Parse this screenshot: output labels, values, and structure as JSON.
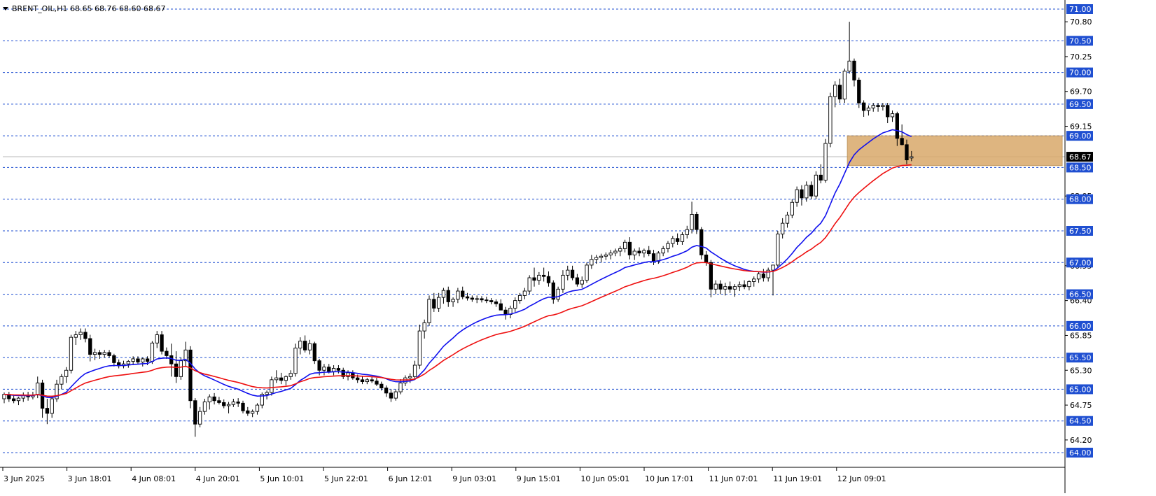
{
  "header": {
    "symbol": "BRENT_OIL,H1",
    "ohlc": "68.65 68.76 68.60 68.67"
  },
  "colors": {
    "grid_level": "#1f4fd1",
    "label_bg": "#1f4fd1",
    "ma_fast": "#1010ee",
    "ma_slow": "#ee1010",
    "zone": "#d9a96b",
    "current_price_line": "#b8b8b8",
    "candle_up": "#ffffff",
    "candle_down": "#000000"
  },
  "chart_data": {
    "type": "candlestick",
    "title": "BRENT_OIL,H1",
    "ylim": [
      64.0,
      71.0
    ],
    "x_tick_labels": [
      "3 Jun 2025",
      "3 Jun 18:01",
      "4 Jun 08:01",
      "4 Jun 20:01",
      "5 Jun 10:01",
      "5 Jun 22:01",
      "6 Jun 12:01",
      "9 Jun 03:01",
      "9 Jun 15:01",
      "10 Jun 05:01",
      "10 Jun 17:01",
      "11 Jun 07:01",
      "11 Jun 19:01",
      "12 Jun 09:01"
    ],
    "price_ticks": [
      "70.80",
      "70.25",
      "69.70",
      "69.15",
      "68.05",
      "66.95",
      "66.40",
      "65.85",
      "65.30",
      "64.75",
      "64.20"
    ],
    "level_lines": [
      "71.00",
      "70.50",
      "70.00",
      "69.50",
      "69.00",
      "68.50",
      "68.00",
      "67.50",
      "67.00",
      "66.50",
      "66.00",
      "65.50",
      "65.00",
      "64.50",
      "64.00"
    ],
    "current_price": "68.67",
    "zone": {
      "from": 68.53,
      "to": 69.0,
      "start_bar": 177,
      "end_bar": 222
    },
    "candles": [
      [
        64.85,
        64.95,
        64.78,
        64.92
      ],
      [
        64.92,
        64.96,
        64.8,
        64.85
      ],
      [
        64.85,
        64.9,
        64.78,
        64.82
      ],
      [
        64.82,
        64.88,
        64.75,
        64.86
      ],
      [
        64.86,
        64.95,
        64.8,
        64.9
      ],
      [
        64.9,
        64.96,
        64.82,
        64.88
      ],
      [
        64.88,
        64.96,
        64.84,
        64.91
      ],
      [
        64.91,
        65.2,
        64.86,
        65.1
      ],
      [
        65.1,
        65.15,
        64.55,
        64.7
      ],
      [
        64.7,
        64.85,
        64.45,
        64.62
      ],
      [
        64.62,
        64.9,
        64.55,
        64.85
      ],
      [
        64.85,
        65.15,
        64.8,
        65.08
      ],
      [
        65.08,
        65.24,
        65.0,
        65.2
      ],
      [
        65.2,
        65.35,
        65.1,
        65.3
      ],
      [
        65.3,
        65.86,
        65.25,
        65.82
      ],
      [
        65.82,
        65.92,
        65.7,
        65.86
      ],
      [
        65.86,
        65.96,
        65.78,
        65.9
      ],
      [
        65.9,
        65.96,
        65.74,
        65.8
      ],
      [
        65.8,
        65.86,
        65.44,
        65.55
      ],
      [
        65.55,
        65.64,
        65.46,
        65.58
      ],
      [
        65.58,
        65.62,
        65.48,
        65.55
      ],
      [
        65.55,
        65.62,
        65.5,
        65.58
      ],
      [
        65.58,
        65.62,
        65.5,
        65.53
      ],
      [
        65.53,
        65.56,
        65.36,
        65.42
      ],
      [
        65.42,
        65.47,
        65.33,
        65.37
      ],
      [
        65.37,
        65.45,
        65.33,
        65.4
      ],
      [
        65.4,
        65.46,
        65.34,
        65.44
      ],
      [
        65.44,
        65.52,
        65.38,
        65.48
      ],
      [
        65.48,
        65.52,
        65.4,
        65.43
      ],
      [
        65.43,
        65.5,
        65.36,
        65.48
      ],
      [
        65.48,
        65.52,
        65.38,
        65.44
      ],
      [
        65.44,
        65.76,
        65.4,
        65.73
      ],
      [
        65.73,
        65.92,
        65.65,
        65.86
      ],
      [
        65.86,
        65.92,
        65.55,
        65.6
      ],
      [
        65.6,
        65.66,
        65.48,
        65.53
      ],
      [
        65.53,
        65.72,
        65.2,
        65.4
      ],
      [
        65.4,
        65.6,
        65.1,
        65.2
      ],
      [
        65.2,
        65.5,
        65.15,
        65.45
      ],
      [
        65.45,
        65.75,
        65.35,
        65.62
      ],
      [
        65.62,
        65.68,
        64.7,
        64.82
      ],
      [
        64.82,
        64.86,
        64.25,
        64.45
      ],
      [
        64.45,
        64.72,
        64.4,
        64.65
      ],
      [
        64.65,
        64.85,
        64.6,
        64.8
      ],
      [
        64.8,
        64.92,
        64.68,
        64.88
      ],
      [
        64.88,
        64.94,
        64.76,
        64.82
      ],
      [
        64.82,
        64.88,
        64.76,
        64.79
      ],
      [
        64.79,
        64.84,
        64.7,
        64.74
      ],
      [
        64.74,
        64.8,
        64.62,
        64.76
      ],
      [
        64.76,
        64.85,
        64.72,
        64.8
      ],
      [
        64.8,
        64.86,
        64.72,
        64.78
      ],
      [
        64.78,
        64.82,
        64.62,
        64.66
      ],
      [
        64.66,
        64.72,
        64.58,
        64.62
      ],
      [
        64.62,
        64.68,
        64.56,
        64.65
      ],
      [
        64.65,
        64.78,
        64.6,
        64.75
      ],
      [
        64.75,
        64.95,
        64.7,
        64.92
      ],
      [
        64.92,
        64.98,
        64.84,
        64.95
      ],
      [
        64.95,
        65.2,
        64.9,
        65.15
      ],
      [
        65.15,
        65.3,
        65.1,
        65.18
      ],
      [
        65.18,
        65.26,
        65.08,
        65.14
      ],
      [
        65.14,
        65.22,
        65.06,
        65.2
      ],
      [
        65.2,
        65.3,
        65.15,
        65.25
      ],
      [
        65.25,
        65.72,
        65.2,
        65.65
      ],
      [
        65.65,
        65.82,
        65.55,
        65.76
      ],
      [
        65.76,
        65.85,
        65.58,
        65.62
      ],
      [
        65.62,
        65.78,
        65.55,
        65.72
      ],
      [
        65.72,
        65.75,
        65.4,
        65.45
      ],
      [
        65.45,
        65.48,
        65.22,
        65.3
      ],
      [
        65.3,
        65.4,
        65.22,
        65.35
      ],
      [
        65.35,
        65.4,
        65.25,
        65.28
      ],
      [
        65.28,
        65.38,
        65.22,
        65.33
      ],
      [
        65.33,
        65.38,
        65.25,
        65.3
      ],
      [
        65.3,
        65.34,
        65.16,
        65.2
      ],
      [
        65.2,
        65.3,
        65.14,
        65.26
      ],
      [
        65.26,
        65.3,
        65.15,
        65.18
      ],
      [
        65.18,
        65.23,
        65.1,
        65.15
      ],
      [
        65.15,
        65.2,
        65.08,
        65.12
      ],
      [
        65.12,
        65.18,
        65.08,
        65.15
      ],
      [
        65.15,
        65.2,
        65.1,
        65.13
      ],
      [
        65.13,
        65.18,
        65.05,
        65.08
      ],
      [
        65.08,
        65.12,
        64.98,
        65.02
      ],
      [
        65.02,
        65.06,
        64.88,
        64.94
      ],
      [
        64.94,
        65.0,
        64.8,
        64.86
      ],
      [
        64.86,
        65.0,
        64.82,
        64.96
      ],
      [
        64.96,
        65.16,
        64.92,
        65.1
      ],
      [
        65.1,
        65.22,
        65.05,
        65.18
      ],
      [
        65.18,
        65.25,
        65.1,
        65.2
      ],
      [
        65.2,
        65.45,
        65.15,
        65.38
      ],
      [
        65.38,
        66.02,
        65.32,
        65.92
      ],
      [
        65.92,
        66.1,
        65.8,
        66.05
      ],
      [
        66.05,
        66.48,
        66.0,
        66.42
      ],
      [
        66.42,
        66.52,
        66.22,
        66.28
      ],
      [
        66.28,
        66.52,
        66.22,
        66.45
      ],
      [
        66.45,
        66.6,
        66.35,
        66.56
      ],
      [
        66.56,
        66.62,
        66.3,
        66.38
      ],
      [
        66.38,
        66.45,
        66.3,
        66.42
      ],
      [
        66.42,
        66.6,
        66.36,
        66.55
      ],
      [
        66.55,
        66.62,
        66.42,
        66.46
      ],
      [
        66.46,
        66.52,
        66.4,
        66.44
      ],
      [
        66.44,
        66.48,
        66.38,
        66.42
      ],
      [
        66.42,
        66.48,
        66.36,
        66.43
      ],
      [
        66.43,
        66.47,
        66.37,
        66.41
      ],
      [
        66.41,
        66.46,
        66.36,
        66.4
      ],
      [
        66.4,
        66.44,
        66.34,
        66.38
      ],
      [
        66.38,
        66.42,
        66.3,
        66.35
      ],
      [
        66.35,
        66.42,
        66.28,
        66.25
      ],
      [
        66.25,
        66.3,
        66.1,
        66.18
      ],
      [
        66.18,
        66.32,
        66.12,
        66.28
      ],
      [
        66.28,
        66.45,
        66.22,
        66.4
      ],
      [
        66.4,
        66.52,
        66.35,
        66.48
      ],
      [
        66.48,
        66.6,
        66.42,
        66.55
      ],
      [
        66.55,
        66.8,
        66.5,
        66.76
      ],
      [
        66.76,
        66.92,
        66.62,
        66.72
      ],
      [
        66.72,
        66.85,
        66.65,
        66.8
      ],
      [
        66.8,
        66.92,
        66.7,
        66.78
      ],
      [
        66.78,
        66.86,
        66.62,
        66.68
      ],
      [
        66.68,
        66.72,
        66.35,
        66.42
      ],
      [
        66.42,
        66.62,
        66.38,
        66.58
      ],
      [
        66.58,
        66.88,
        66.52,
        66.8
      ],
      [
        66.8,
        66.95,
        66.72,
        66.88
      ],
      [
        66.88,
        66.95,
        66.72,
        66.76
      ],
      [
        66.76,
        66.82,
        66.62,
        66.66
      ],
      [
        66.66,
        66.78,
        66.6,
        66.72
      ],
      [
        66.72,
        67.0,
        66.68,
        66.96
      ],
      [
        66.96,
        67.12,
        66.9,
        67.05
      ],
      [
        67.05,
        67.12,
        66.98,
        67.08
      ],
      [
        67.08,
        67.14,
        67.0,
        67.1
      ],
      [
        67.1,
        67.16,
        67.04,
        67.12
      ],
      [
        67.12,
        67.2,
        67.05,
        67.15
      ],
      [
        67.15,
        67.22,
        67.1,
        67.18
      ],
      [
        67.18,
        67.26,
        67.1,
        67.22
      ],
      [
        67.22,
        67.36,
        67.16,
        67.32
      ],
      [
        67.32,
        67.4,
        67.05,
        67.12
      ],
      [
        67.12,
        67.22,
        67.04,
        67.18
      ],
      [
        67.18,
        67.24,
        67.1,
        67.15
      ],
      [
        67.15,
        67.22,
        67.08,
        67.19
      ],
      [
        67.19,
        67.26,
        67.1,
        67.14
      ],
      [
        67.14,
        67.2,
        66.96,
        67.02
      ],
      [
        67.02,
        67.18,
        66.98,
        67.15
      ],
      [
        67.15,
        67.26,
        67.1,
        67.22
      ],
      [
        67.22,
        67.34,
        67.16,
        67.3
      ],
      [
        67.3,
        67.42,
        67.24,
        67.38
      ],
      [
        67.38,
        67.46,
        67.28,
        67.33
      ],
      [
        67.33,
        67.48,
        67.28,
        67.44
      ],
      [
        67.44,
        67.58,
        67.38,
        67.52
      ],
      [
        67.52,
        67.96,
        67.46,
        67.76
      ],
      [
        67.76,
        67.8,
        67.45,
        67.52
      ],
      [
        67.52,
        67.56,
        67.05,
        67.12
      ],
      [
        67.12,
        67.18,
        66.95,
        67.0
      ],
      [
        67.0,
        67.04,
        66.45,
        66.58
      ],
      [
        66.58,
        66.72,
        66.5,
        66.66
      ],
      [
        66.66,
        66.72,
        66.5,
        66.58
      ],
      [
        66.58,
        66.68,
        66.48,
        66.62
      ],
      [
        66.62,
        66.7,
        66.52,
        66.58
      ],
      [
        66.58,
        66.66,
        66.46,
        66.62
      ],
      [
        66.62,
        66.7,
        66.55,
        66.65
      ],
      [
        66.65,
        66.72,
        66.58,
        66.62
      ],
      [
        66.62,
        66.72,
        66.56,
        66.7
      ],
      [
        66.7,
        66.78,
        66.62,
        66.74
      ],
      [
        66.74,
        66.86,
        66.68,
        66.82
      ],
      [
        66.82,
        66.9,
        66.7,
        66.76
      ],
      [
        66.76,
        66.92,
        66.7,
        66.88
      ],
      [
        66.88,
        66.96,
        66.48,
        66.96
      ],
      [
        66.96,
        67.5,
        66.92,
        67.45
      ],
      [
        67.45,
        67.7,
        67.38,
        67.62
      ],
      [
        67.62,
        67.8,
        67.55,
        67.75
      ],
      [
        67.75,
        68.0,
        67.7,
        67.95
      ],
      [
        67.95,
        68.2,
        67.88,
        68.15
      ],
      [
        68.15,
        68.22,
        67.9,
        68.02
      ],
      [
        68.02,
        68.28,
        67.96,
        68.22
      ],
      [
        68.22,
        68.28,
        68.0,
        68.05
      ],
      [
        68.05,
        68.44,
        68.0,
        68.38
      ],
      [
        68.38,
        68.55,
        68.25,
        68.3
      ],
      [
        68.3,
        68.95,
        68.26,
        68.88
      ],
      [
        68.88,
        69.68,
        68.82,
        69.62
      ],
      [
        69.62,
        69.86,
        69.45,
        69.8
      ],
      [
        69.8,
        69.9,
        69.52,
        69.58
      ],
      [
        69.58,
        70.06,
        69.52,
        70.02
      ],
      [
        70.02,
        70.8,
        69.98,
        70.18
      ],
      [
        70.18,
        70.22,
        69.78,
        69.88
      ],
      [
        69.88,
        69.92,
        69.44,
        69.52
      ],
      [
        69.52,
        69.56,
        69.3,
        69.4
      ],
      [
        69.4,
        69.48,
        69.32,
        69.44
      ],
      [
        69.44,
        69.52,
        69.38,
        69.48
      ],
      [
        69.48,
        69.52,
        69.38,
        69.46
      ],
      [
        69.46,
        69.52,
        69.4,
        69.48
      ],
      [
        69.48,
        69.52,
        69.2,
        69.3
      ],
      [
        69.3,
        69.4,
        69.22,
        69.35
      ],
      [
        69.35,
        69.38,
        68.84,
        68.96
      ],
      [
        68.96,
        69.18,
        68.85,
        68.86
      ],
      [
        68.86,
        68.94,
        68.55,
        68.62
      ],
      [
        68.65,
        68.76,
        68.6,
        68.67
      ]
    ],
    "series": [
      {
        "color": "#1010ee",
        "period": 20
      },
      {
        "color": "#ee1010",
        "period": 40
      }
    ]
  }
}
